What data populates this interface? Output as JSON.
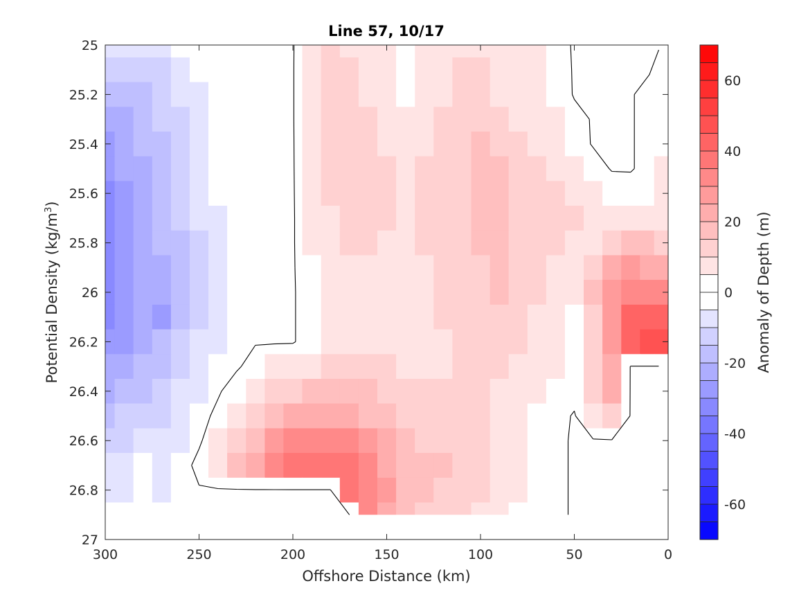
{
  "chart_data": {
    "type": "contour",
    "title": "Line 57, 10/17",
    "xlabel": "Offshore Distance (km)",
    "ylabel": "Potential Density (kg/m",
    "ylabel_superscript": "3",
    "ylabel_suffix": ")",
    "colorbar_label": "Anomaly of Depth (m)",
    "xlim": [
      300,
      0
    ],
    "x_reversed": true,
    "ylim": [
      25,
      27
    ],
    "y_reversed": true,
    "x_ticks": [
      300,
      250,
      200,
      150,
      100,
      50,
      0
    ],
    "x_tick_labels": [
      "300",
      "250",
      "200",
      "150",
      "100",
      "50",
      "0"
    ],
    "y_ticks": [
      25,
      25.2,
      25.4,
      25.6,
      25.8,
      26,
      26.2,
      26.4,
      26.6,
      26.8,
      27
    ],
    "y_tick_labels": [
      "25",
      "25.2",
      "25.4",
      "25.6",
      "25.8",
      "26",
      "26.2",
      "26.4",
      "26.6",
      "26.8",
      "27"
    ],
    "colorbar_limits": [
      -70,
      70
    ],
    "colorbar_step": 5,
    "colorbar_ticks": [
      60,
      40,
      20,
      0,
      -20,
      -40,
      -60
    ],
    "colorbar_tick_labels": [
      "60",
      "40",
      "20",
      "0",
      "-20",
      "-40",
      "-60"
    ],
    "colormap": {
      "negative_end": "#0000ff",
      "zero": "#ffffff",
      "positive_end": "#ff0000"
    },
    "zero_contour_color": "#000000",
    "grid": false,
    "grid_x_km": [
      300,
      290,
      280,
      270,
      260,
      250,
      240,
      230,
      220,
      210,
      200,
      190,
      180,
      170,
      160,
      150,
      140,
      130,
      120,
      110,
      100,
      90,
      80,
      70,
      60,
      50,
      40,
      30,
      20,
      10,
      5
    ],
    "grid_y_density": [
      25.0,
      25.1,
      25.2,
      25.3,
      25.4,
      25.5,
      25.6,
      25.7,
      25.8,
      25.9,
      26.0,
      26.1,
      26.2,
      26.3,
      26.4,
      26.5,
      26.6,
      26.7,
      26.8,
      26.9
    ],
    "values_m": [
      [
        -8,
        -8,
        -6,
        -5,
        -3,
        -2,
        -1,
        -0.5,
        -0.5,
        -1,
        -0.5,
        8,
        10,
        9,
        6,
        5,
        4,
        6,
        8,
        9,
        8,
        7,
        6,
        5,
        2,
        -0.5,
        -0.5,
        -0.5,
        -0.5,
        -0.5,
        -0.5
      ],
      [
        -12,
        -14,
        -12,
        -10,
        -7,
        -4,
        -2,
        -0.5,
        -0.5,
        -1,
        -0.5,
        9,
        11,
        10,
        8,
        6,
        3,
        5,
        8,
        10,
        10,
        8,
        7,
        6,
        3,
        -0.5,
        -0.5,
        -0.5,
        -0.5,
        -0.5,
        2
      ],
      [
        -18,
        -18,
        -15,
        -12,
        -8,
        -5,
        -2,
        -0.5,
        -0.5,
        -1,
        -0.5,
        9,
        11,
        11,
        9,
        7,
        4,
        6,
        9,
        11,
        11,
        9,
        8,
        7,
        4,
        -0.5,
        -0.5,
        -0.5,
        -0.5,
        2,
        3
      ],
      [
        -22,
        -20,
        -17,
        -14,
        -10,
        -6,
        -3,
        -0.5,
        -0.5,
        -1,
        -0.5,
        9,
        11,
        12,
        10,
        8,
        6,
        7,
        10,
        12,
        13,
        11,
        9,
        8,
        5,
        2,
        -0.5,
        -0.5,
        -0.5,
        2,
        3
      ],
      [
        -25,
        -22,
        -19,
        -16,
        -12,
        -7,
        -3,
        -1,
        -0.5,
        -1,
        -0.5,
        8,
        11,
        12,
        11,
        9,
        8,
        9,
        11,
        13,
        15,
        14,
        11,
        9,
        6,
        3,
        -0.5,
        -0.5,
        -0.5,
        2,
        4
      ],
      [
        -28,
        -24,
        -21,
        -18,
        -13,
        -8,
        -4,
        -1,
        -0.5,
        -1,
        -0.5,
        7,
        11,
        13,
        12,
        10,
        9,
        10,
        12,
        13,
        15,
        15,
        13,
        11,
        8,
        5,
        3,
        -0.5,
        -0.5,
        2,
        5
      ],
      [
        -30,
        -25,
        -22,
        -18,
        -14,
        -9,
        -4,
        -2,
        -0.5,
        -1,
        -0.5,
        6,
        10,
        12,
        12,
        10,
        9,
        10,
        12,
        13,
        16,
        16,
        14,
        12,
        10,
        8,
        6,
        4,
        3,
        4,
        5
      ],
      [
        -31,
        -26,
        -23,
        -19,
        -14,
        -9,
        -5,
        -2,
        -0.5,
        -0.5,
        -0.5,
        5,
        9,
        11,
        11,
        10,
        9,
        10,
        11,
        13,
        15,
        16,
        14,
        13,
        11,
        10,
        8,
        8,
        8,
        8,
        8
      ],
      [
        -31,
        -27,
        -23,
        -19,
        -15,
        -10,
        -5,
        -2,
        -0.5,
        -0.5,
        -0.5,
        5,
        8,
        10,
        10,
        9,
        9,
        10,
        11,
        12,
        15,
        16,
        14,
        12,
        10,
        9,
        8,
        12,
        16,
        15,
        12
      ],
      [
        -32,
        -28,
        -24,
        -20,
        -15,
        -10,
        -5,
        -2,
        -0.5,
        -0.5,
        -0.5,
        4,
        7,
        9,
        9,
        9,
        9,
        9,
        10,
        12,
        14,
        15,
        13,
        11,
        8,
        6,
        12,
        20,
        26,
        24,
        20
      ],
      [
        -32,
        -28,
        -24,
        -20,
        -15,
        -10,
        -5,
        -2,
        -0.5,
        -0.5,
        -0.5,
        3,
        6,
        8,
        8,
        8,
        8,
        9,
        10,
        12,
        14,
        15,
        13,
        10,
        7,
        5,
        15,
        25,
        33,
        33,
        30
      ],
      [
        -30,
        -27,
        -23,
        -25,
        -15,
        -10,
        -5,
        -2,
        -0.5,
        -0.5,
        -0.5,
        3,
        5,
        7,
        7,
        7,
        8,
        9,
        10,
        12,
        14,
        14,
        12,
        9,
        7,
        4,
        14,
        28,
        40,
        42,
        44
      ],
      [
        -28,
        -25,
        -22,
        -19,
        -14,
        -9,
        -5,
        -2,
        -0.5,
        -0.5,
        -0.5,
        3,
        7,
        9,
        9,
        8,
        8,
        8,
        9,
        11,
        12,
        12,
        10,
        8,
        6,
        4,
        13,
        26,
        42,
        48,
        48
      ],
      [
        -24,
        -22,
        -19,
        -16,
        -12,
        -7,
        -3,
        -1,
        3,
        5,
        7,
        9,
        11,
        13,
        12,
        10,
        8,
        8,
        9,
        10,
        11,
        10,
        8,
        6,
        5,
        3,
        12,
        24,
        -0.5,
        -0.5,
        -0.5
      ],
      [
        -20,
        -18,
        -15,
        -13,
        -9,
        -5,
        -1,
        4,
        8,
        11,
        13,
        15,
        16,
        17,
        15,
        13,
        11,
        10,
        10,
        10,
        10,
        8,
        6,
        5,
        3,
        2,
        10,
        20,
        -0.5,
        -0.5,
        -0.5
      ],
      [
        -16,
        -14,
        -12,
        -10,
        -7,
        -3,
        2,
        8,
        13,
        17,
        20,
        22,
        23,
        22,
        19,
        16,
        14,
        12,
        11,
        11,
        10,
        7,
        5,
        4,
        2,
        -0.5,
        7,
        14,
        -0.5,
        -0.5,
        -0.5
      ],
      [
        -12,
        -10,
        -9,
        -7,
        -5,
        -1,
        5,
        12,
        19,
        25,
        30,
        33,
        34,
        31,
        25,
        20,
        16,
        14,
        14,
        13,
        11,
        7,
        5,
        3,
        1,
        -0.5,
        -0.5,
        -0.5,
        -0.5,
        -0.5,
        -0.5
      ],
      [
        -6,
        -5,
        -4,
        -5,
        -3,
        2,
        8,
        16,
        24,
        31,
        36,
        38,
        39,
        36,
        30,
        23,
        18,
        16,
        15,
        14,
        11,
        7,
        5,
        3,
        1,
        -0.5,
        -0.5,
        -0.5,
        -0.5,
        -0.5,
        -0.5
      ],
      [
        -5,
        -8,
        -4,
        -5,
        -2,
        -0.5,
        -0.5,
        -0.5,
        -0.5,
        -0.5,
        -0.5,
        -0.5,
        -0.5,
        36,
        32,
        25,
        18,
        15,
        14,
        13,
        10,
        7,
        5,
        3,
        1,
        -0.5,
        -2,
        -0.5,
        -0.5,
        -0.5,
        -0.5
      ],
      [
        -4,
        -3,
        -3,
        -3,
        -2,
        -0.5,
        -0.5,
        -0.5,
        -0.5,
        -0.5,
        -0.5,
        -0.5,
        -0.5,
        -0.5,
        30,
        24,
        17,
        14,
        12,
        10,
        8,
        5,
        3,
        2,
        1,
        -0.5,
        -0.5,
        -0.5,
        -0.5,
        -0.5,
        -0.5
      ]
    ],
    "nan_regions": [
      {
        "description": "no data below 26.9",
        "x_from": 300,
        "x_to": 0,
        "y_from": 26.9,
        "y_to": 27
      },
      {
        "description": "no data below 26.8",
        "x_from": 250,
        "x_to": 175,
        "y_from": 26.8,
        "y_to": 27
      }
    ]
  }
}
